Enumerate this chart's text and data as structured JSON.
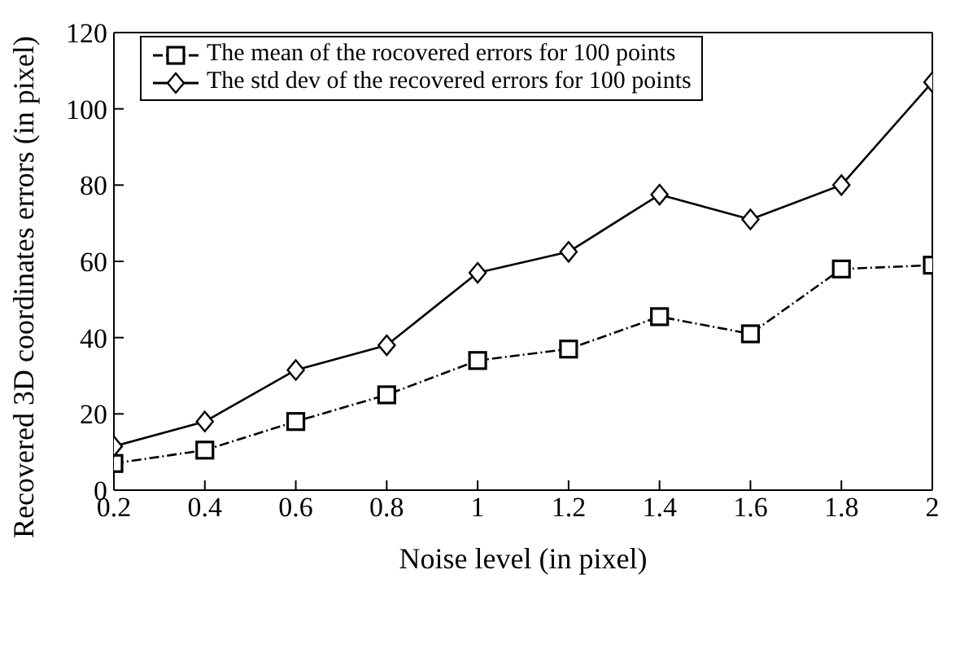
{
  "chart_data": {
    "type": "line",
    "xlabel": "Noise level (in pixel)",
    "ylabel": "Recovered 3D coordinates errors (in pixel)",
    "x": [
      0.2,
      0.4,
      0.6,
      0.8,
      1,
      1.2,
      1.4,
      1.6,
      1.8,
      2
    ],
    "series": [
      {
        "name": "The mean of the rocovered errors for 100 points",
        "color": "#000000",
        "marker": "square",
        "line_style": "dashed",
        "values": [
          7,
          10.5,
          18,
          25,
          34,
          37,
          45.5,
          41,
          58,
          59
        ]
      },
      {
        "name": "The std dev of the recovered errors for 100 points",
        "color": "#000000",
        "marker": "diamond",
        "line_style": "solid",
        "values": [
          11.5,
          18,
          31.5,
          38,
          57,
          62.5,
          77.5,
          71,
          80,
          107
        ]
      }
    ],
    "xlim": [
      0.2,
      2
    ],
    "xticks": [
      0.2,
      0.4,
      0.6,
      0.8,
      1,
      1.2,
      1.4,
      1.6,
      1.8,
      2
    ],
    "ylim": [
      0,
      120
    ],
    "yticks": [
      0,
      20,
      40,
      60,
      80,
      100,
      120
    ],
    "grid": false,
    "legend": "top left"
  }
}
